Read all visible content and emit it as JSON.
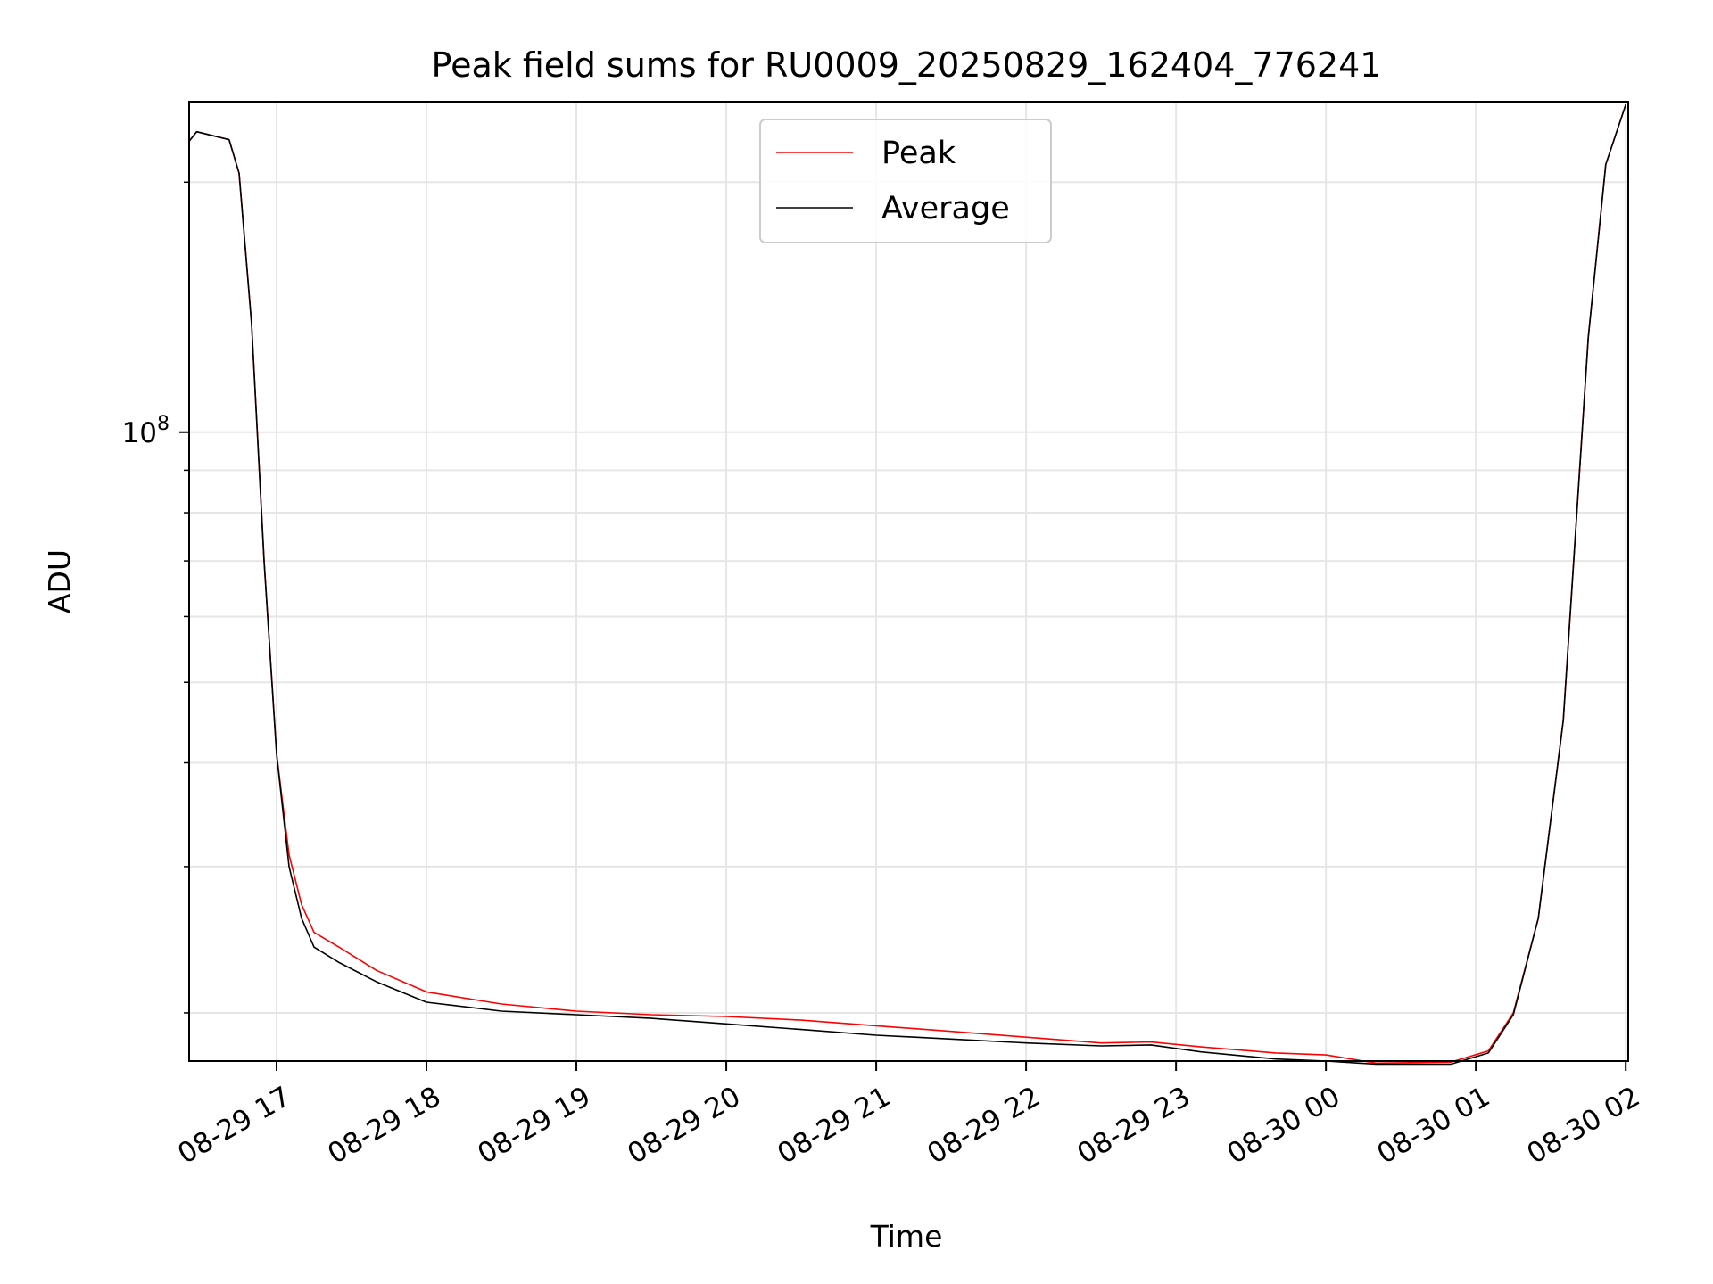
{
  "chart_data": {
    "type": "line",
    "title": "Peak field sums for RU0009_20250829_162404_776241",
    "xlabel": "Time",
    "ylabel": "ADU",
    "y_scale": "log",
    "grid": true,
    "grid_minor": true,
    "legend_position": "top-center",
    "xlim": [
      "2025-08-29 16:25",
      "2025-08-30 02:01"
    ],
    "ylim": [
      17500000,
      250000000
    ],
    "x_tick_labels": [
      "08-29 17",
      "08-29 18",
      "08-29 19",
      "08-29 20",
      "08-29 21",
      "08-29 22",
      "08-29 23",
      "08-30 00",
      "08-30 01",
      "08-30 02"
    ],
    "x_tick_times": [
      "2025-08-29 17:00",
      "2025-08-29 18:00",
      "2025-08-29 19:00",
      "2025-08-29 20:00",
      "2025-08-29 21:00",
      "2025-08-29 22:00",
      "2025-08-29 23:00",
      "2025-08-30 00:00",
      "2025-08-30 01:00",
      "2025-08-30 02:00"
    ],
    "y_major_ticks": [
      {
        "value": 100000000,
        "base": "10",
        "exponent": "8"
      }
    ],
    "y_minor_ticks": [
      20000000,
      30000000,
      40000000,
      50000000,
      60000000,
      70000000,
      80000000,
      90000000,
      200000000
    ],
    "series": [
      {
        "name": "Peak",
        "color": "#ff0000",
        "x": [
          "2025-08-29 16:25",
          "2025-08-29 16:28",
          "2025-08-29 16:41",
          "2025-08-29 16:45",
          "2025-08-29 16:50",
          "2025-08-29 16:55",
          "2025-08-29 17:00",
          "2025-08-29 17:05",
          "2025-08-29 17:10",
          "2025-08-29 17:15",
          "2025-08-29 17:25",
          "2025-08-29 17:40",
          "2025-08-29 18:00",
          "2025-08-29 18:30",
          "2025-08-29 19:00",
          "2025-08-29 19:30",
          "2025-08-29 20:00",
          "2025-08-29 20:30",
          "2025-08-29 21:00",
          "2025-08-29 21:30",
          "2025-08-29 22:00",
          "2025-08-29 22:30",
          "2025-08-29 22:50",
          "2025-08-29 23:10",
          "2025-08-29 23:40",
          "2025-08-30 00:00",
          "2025-08-30 00:20",
          "2025-08-30 00:50",
          "2025-08-30 01:05",
          "2025-08-30 01:15",
          "2025-08-30 01:25",
          "2025-08-30 01:35",
          "2025-08-30 01:45",
          "2025-08-30 01:52",
          "2025-08-30 02:00"
        ],
        "values": [
          224000000,
          230000000,
          225000000,
          205000000,
          135000000,
          70000000,
          41000000,
          31000000,
          27000000,
          25000000,
          24000000,
          22500000,
          21200000,
          20500000,
          20100000,
          19900000,
          19800000,
          19600000,
          19300000,
          19000000,
          18700000,
          18400000,
          18450000,
          18200000,
          17900000,
          17800000,
          17400000,
          17450000,
          18000000,
          20000000,
          26000000,
          45000000,
          130000000,
          210000000,
          248000000
        ]
      },
      {
        "name": "Average",
        "color": "#000000",
        "x": [
          "2025-08-29 16:25",
          "2025-08-29 16:28",
          "2025-08-29 16:41",
          "2025-08-29 16:45",
          "2025-08-29 16:50",
          "2025-08-29 16:55",
          "2025-08-29 17:00",
          "2025-08-29 17:05",
          "2025-08-29 17:10",
          "2025-08-29 17:15",
          "2025-08-29 17:25",
          "2025-08-29 17:40",
          "2025-08-29 18:00",
          "2025-08-29 18:30",
          "2025-08-29 19:00",
          "2025-08-29 19:30",
          "2025-08-29 20:00",
          "2025-08-29 20:30",
          "2025-08-29 21:00",
          "2025-08-29 21:30",
          "2025-08-29 22:00",
          "2025-08-29 22:30",
          "2025-08-29 22:50",
          "2025-08-29 23:10",
          "2025-08-29 23:40",
          "2025-08-30 00:00",
          "2025-08-30 00:20",
          "2025-08-30 00:50",
          "2025-08-30 01:05",
          "2025-08-30 01:15",
          "2025-08-30 01:25",
          "2025-08-30 01:35",
          "2025-08-30 01:45",
          "2025-08-30 01:52",
          "2025-08-30 02:00"
        ],
        "values": [
          224000000,
          230000000,
          225000000,
          205000000,
          135000000,
          70000000,
          41000000,
          30000000,
          26000000,
          24000000,
          23000000,
          21800000,
          20600000,
          20100000,
          19900000,
          19700000,
          19400000,
          19100000,
          18800000,
          18600000,
          18400000,
          18250000,
          18300000,
          17950000,
          17600000,
          17500000,
          17350000,
          17350000,
          17900000,
          19900000,
          26000000,
          45000000,
          130000000,
          210000000,
          248000000
        ]
      }
    ]
  }
}
